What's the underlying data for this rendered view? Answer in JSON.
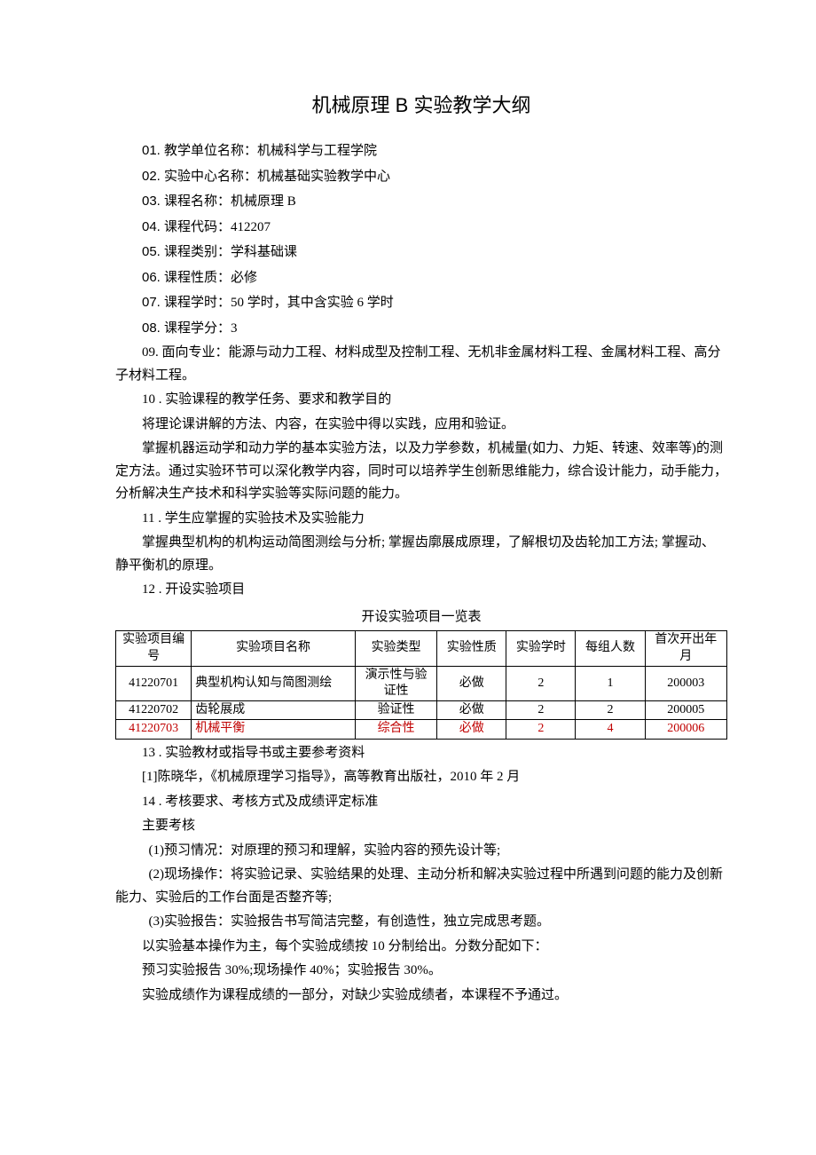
{
  "title": "机械原理 B 实验教学大纲",
  "info": [
    {
      "num": "01.",
      "label": "教学单位名称：",
      "value": "机械科学与工程学院"
    },
    {
      "num": "02.",
      "label": "实验中心名称：",
      "value": "机械基础实验教学中心"
    },
    {
      "num": "03.",
      "label": "课程名称：",
      "value": "机械原理 B"
    },
    {
      "num": "04.",
      "label": "课程代码：",
      "value": "412207"
    },
    {
      "num": "05.",
      "label": "课程类别：",
      "value": "学科基础课"
    },
    {
      "num": "06.",
      "label": "课程性质：",
      "value": "必修"
    },
    {
      "num": "07.",
      "label": "课程学时：",
      "value": "50 学时，其中含实验 6 学时"
    },
    {
      "num": "08.",
      "label": "课程学分：",
      "value": "3"
    }
  ],
  "line09": "09. 面向专业：能源与动力工程、材料成型及控制工程、无机非金属材料工程、金属材料工程、高分子材料工程。",
  "section10_h": "10 . 实验课程的教学任务、要求和教学目的",
  "section10_p1": "将理论课讲解的方法、内容，在实验中得以实践，应用和验证。",
  "section10_p2": "掌握机器运动学和动力学的基本实验方法，以及力学参数，机械量(如力、力矩、转速、效率等)的测定方法。通过实验环节可以深化教学内容，同时可以培养学生创新思维能力，综合设计能力，动手能力，分析解决生产技术和科学实验等实际问题的能力。",
  "section11_h": "11 . 学生应掌握的实验技术及实验能力",
  "section11_p1": "掌握典型机构的机构运动简图测绘与分析; 掌握齿廓展成原理，了解根切及齿轮加工方法; 掌握动、静平衡机的原理。",
  "section12_h": "12 . 开设实验项目",
  "table_title": "开设实验项目一览表",
  "table_headers": [
    "实验项目编号",
    "实验项目名称",
    "实验类型",
    "实验性质",
    "实验学时",
    "每组人数",
    "首次开出年月"
  ],
  "table_rows": [
    {
      "id": "41220701",
      "name": "典型机构认知与简图测绘",
      "type": "演示性与验证性",
      "nature": "必做",
      "hours": "2",
      "people": "1",
      "first": "200003",
      "red": false
    },
    {
      "id": "41220702",
      "name": "齿轮展成",
      "type": "验证性",
      "nature": "必做",
      "hours": "2",
      "people": "2",
      "first": "200005",
      "red": false
    },
    {
      "id": "41220703",
      "name": "机械平衡",
      "type": "综合性",
      "nature": "必做",
      "hours": "2",
      "people": "4",
      "first": "200006",
      "red": true
    }
  ],
  "section13_h": "13 . 实验教材或指导书或主要参考资料",
  "section13_p1": "[1]陈晓华，《机械原理学习指导》，高等教育出版社，2010 年 2 月",
  "section14_h": "14 . 考核要求、考核方式及成绩评定标准",
  "section14_p1": "主要考核",
  "section14_p2": "(1)预习情况：对原理的预习和理解，实验内容的预先设计等;",
  "section14_p3": "(2)现场操作：将实验记录、实验结果的处理、主动分析和解决实验过程中所遇到问题的能力及创新能力、实验后的工作台面是否整齐等;",
  "section14_p4": "(3)实验报告：实验报告书写简洁完整，有创造性，独立完成思考题。",
  "section14_p5": "以实验基本操作为主，每个实验成绩按 10 分制给出。分数分配如下：",
  "section14_p6": "预习实验报告 30%;现场操作 40%；实验报告 30%。",
  "section14_p7": "实验成绩作为课程成绩的一部分，对缺少实验成绩者，本课程不予通过。"
}
